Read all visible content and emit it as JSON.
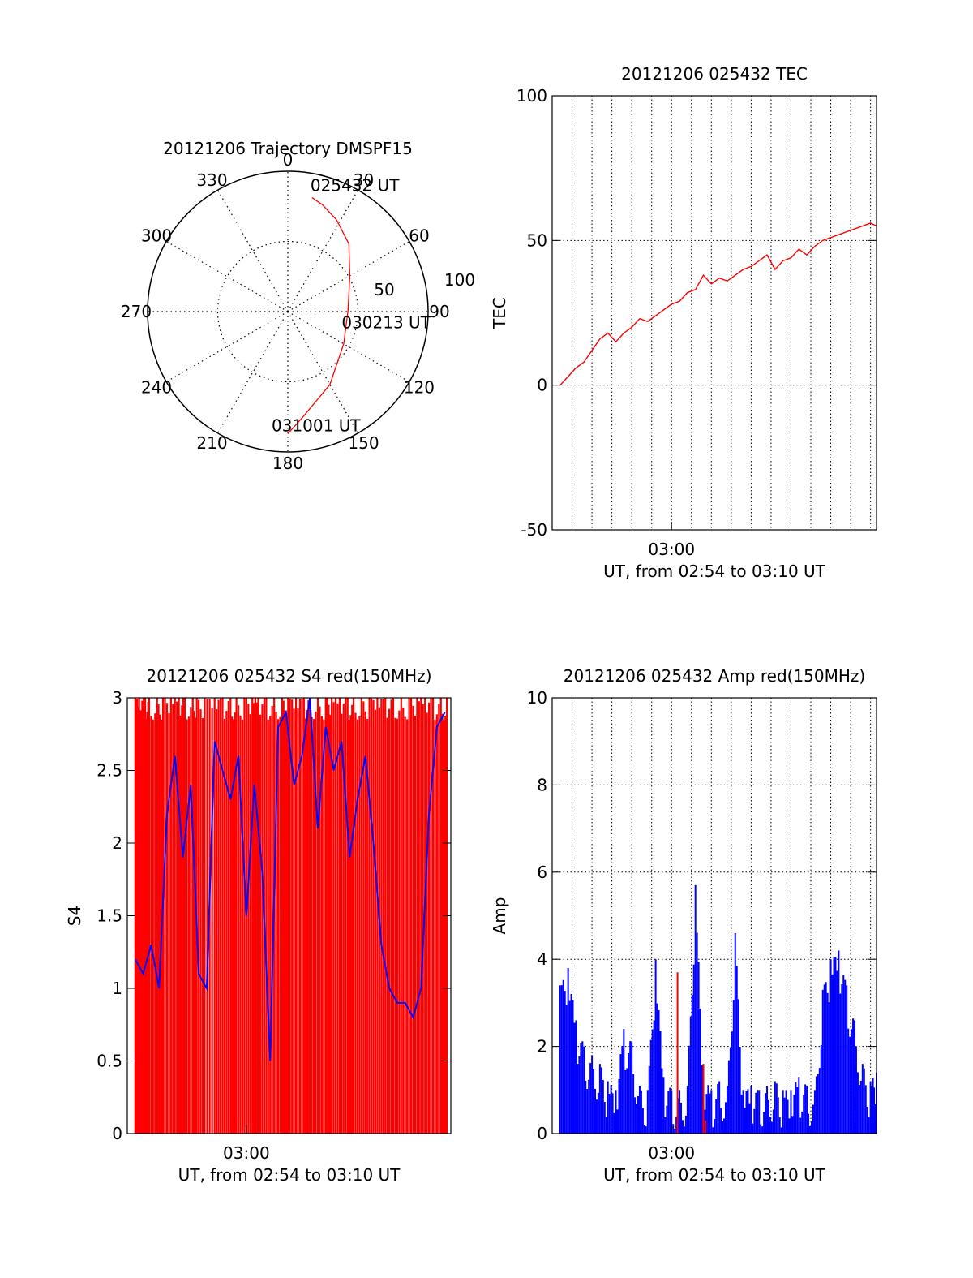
{
  "chart_data": [
    {
      "type": "polar",
      "title": "20121206 Trajectory DMSPF15",
      "angle_labels": [
        "0",
        "30",
        "60",
        "90",
        "120",
        "150",
        "180",
        "210",
        "240",
        "270",
        "300",
        "330"
      ],
      "radius_labels": [
        "50",
        "100"
      ],
      "rlim": [
        0,
        100
      ],
      "grid": true,
      "series": [
        {
          "color": "#ff0000",
          "points": [
            [
              12,
              83
            ],
            [
              18,
              80
            ],
            [
              28,
              74
            ],
            [
              42,
              65
            ],
            [
              60,
              51
            ],
            [
              88,
              43
            ],
            [
              120,
              46
            ],
            [
              150,
              60
            ],
            [
              172,
              76
            ],
            [
              180,
              87
            ]
          ]
        }
      ],
      "annotations": [
        {
          "text": "025432 UT",
          "az": 12,
          "r": 83
        },
        {
          "text": "030213 UT",
          "az": 88,
          "r": 43
        },
        {
          "text": "031001 UT",
          "az": 180,
          "r": 87
        }
      ]
    },
    {
      "type": "line",
      "title": "20121206 025432 TEC",
      "xlabel": "UT, from 02:54 to 03:10 UT",
      "ylabel": "TEC",
      "xticks": [
        "03:00"
      ],
      "yticks": [
        "-50",
        "0",
        "50",
        "100"
      ],
      "xlim": [
        0,
        16.3
      ],
      "ylim": [
        -50,
        100
      ],
      "grid": true,
      "series": [
        {
          "color": "#ff0000",
          "x": [
            0.4,
            0.8,
            1.2,
            1.6,
            2.0,
            2.4,
            2.8,
            3.2,
            3.6,
            4.0,
            4.4,
            4.8,
            5.2,
            5.6,
            6.0,
            6.4,
            6.8,
            7.2,
            7.6,
            8.0,
            8.4,
            8.8,
            9.2,
            9.6,
            10.0,
            10.4,
            10.8,
            11.2,
            11.6,
            12.0,
            12.4,
            12.8,
            13.2,
            13.6,
            14.0,
            14.4,
            14.8,
            15.2,
            15.6,
            16.0,
            16.3
          ],
          "y": [
            0,
            3,
            6,
            8,
            12,
            16,
            18,
            15,
            18,
            20,
            23,
            22,
            24,
            26,
            28,
            29,
            32,
            33,
            38,
            35,
            37,
            36,
            38,
            40,
            41,
            43,
            45,
            40,
            43,
            44,
            47,
            45,
            48,
            50,
            51,
            52,
            53,
            54,
            55,
            56,
            55
          ]
        }
      ]
    },
    {
      "type": "line",
      "title": "20121206 025432 S4 red(150MHz)",
      "xlabel": "UT, from 02:54 to 03:10 UT",
      "ylabel": "S4",
      "xticks": [
        "03:00"
      ],
      "yticks": [
        "0",
        "0.5",
        "1",
        "1.5",
        "2",
        "2.5",
        "3"
      ],
      "xlim": [
        0,
        16.3
      ],
      "ylim": [
        0,
        3
      ],
      "grid": false,
      "series": [
        {
          "name": "",
          "color": "#ff0000",
          "style": "dense-vertical-lines",
          "x": [
            0.4,
            0.6,
            0.9,
            1.1,
            1.5,
            1.8,
            2.2,
            2.6,
            2.9,
            3.3,
            3.5,
            3.9,
            4.4,
            4.8,
            5.2,
            5.5,
            5.9,
            6.3,
            6.6,
            7.0,
            7.4,
            7.8,
            8.1,
            8.5,
            8.9,
            9.2,
            9.6,
            10.0,
            10.3,
            10.7,
            11.1,
            11.4,
            11.8,
            12.2,
            12.6,
            13.0,
            13.4,
            13.8,
            14.2,
            14.6,
            15.0,
            15.4,
            15.8,
            16.1
          ],
          "y": [
            3,
            3,
            3,
            3,
            3,
            3,
            3,
            3,
            3,
            3,
            3,
            3,
            3,
            3,
            3,
            3,
            3,
            3,
            3,
            3,
            3,
            3,
            3,
            3,
            3,
            3,
            3,
            3,
            3,
            3,
            3,
            3,
            3,
            3,
            3,
            3,
            3,
            3,
            3,
            3,
            3,
            3,
            3,
            3
          ]
        },
        {
          "name": "",
          "color": "#0000ff",
          "x": [
            0.4,
            0.8,
            1.2,
            1.6,
            2.0,
            2.4,
            2.8,
            3.2,
            3.6,
            4.0,
            4.4,
            4.8,
            5.2,
            5.6,
            6.0,
            6.4,
            6.8,
            7.2,
            7.6,
            8.0,
            8.4,
            8.8,
            9.2,
            9.6,
            10.0,
            10.4,
            10.8,
            11.2,
            11.6,
            12.0,
            12.4,
            12.8,
            13.2,
            13.6,
            14.0,
            14.4,
            14.8,
            15.2,
            15.6,
            16.0
          ],
          "y": [
            1.2,
            1.1,
            1.3,
            1.0,
            2.2,
            2.6,
            1.9,
            2.4,
            1.1,
            1.0,
            2.7,
            2.5,
            2.3,
            2.6,
            1.5,
            2.4,
            1.8,
            0.5,
            2.8,
            2.9,
            2.4,
            2.6,
            3.0,
            2.1,
            2.8,
            2.5,
            2.7,
            1.9,
            2.3,
            2.6,
            2.0,
            1.3,
            1.0,
            0.9,
            0.9,
            0.8,
            1.0,
            2.2,
            2.8,
            2.9
          ]
        }
      ]
    },
    {
      "type": "line",
      "title": "20121206 025432 Amp red(150MHz)",
      "xlabel": "UT, from 02:54 to 03:10 UT",
      "ylabel": "Amp",
      "xticks": [
        "03:00"
      ],
      "yticks": [
        "0",
        "2",
        "4",
        "6",
        "8",
        "10"
      ],
      "xlim": [
        0,
        16.3
      ],
      "ylim": [
        0,
        10
      ],
      "grid": true,
      "series": [
        {
          "name": "",
          "color": "#0000ff",
          "style": "dense-vertical-lines",
          "x": [
            0.4,
            0.8,
            1.2,
            1.6,
            2.0,
            2.4,
            2.8,
            3.2,
            3.6,
            4.0,
            4.4,
            4.8,
            5.2,
            5.6,
            6.0,
            6.4,
            6.8,
            7.2,
            7.6,
            8.0,
            8.4,
            8.8,
            9.2,
            9.6,
            10.0,
            10.4,
            10.8,
            11.2,
            11.6,
            12.0,
            12.4,
            12.8,
            13.2,
            13.6,
            14.0,
            14.4,
            14.8,
            15.2,
            15.6,
            16.0,
            16.3
          ],
          "y": [
            3.4,
            3.8,
            2.6,
            2.0,
            1.8,
            1.6,
            1.2,
            1.0,
            2.4,
            2.1,
            1.1,
            1.0,
            4.0,
            1.3,
            1.0,
            1.0,
            1.1,
            5.7,
            1.3,
            1.0,
            1.2,
            1.1,
            4.6,
            1.0,
            1.1,
            1.0,
            1.1,
            1.2,
            1.0,
            1.0,
            1.3,
            1.1,
            1.0,
            3.3,
            4.0,
            4.2,
            3.4,
            2.6,
            1.6,
            1.2,
            1.4
          ]
        },
        {
          "name": "",
          "color": "#ff0000",
          "x": [
            6.3,
            7.6,
            7.7
          ],
          "y": [
            3.7,
            1.6,
            0.3
          ]
        }
      ]
    }
  ]
}
